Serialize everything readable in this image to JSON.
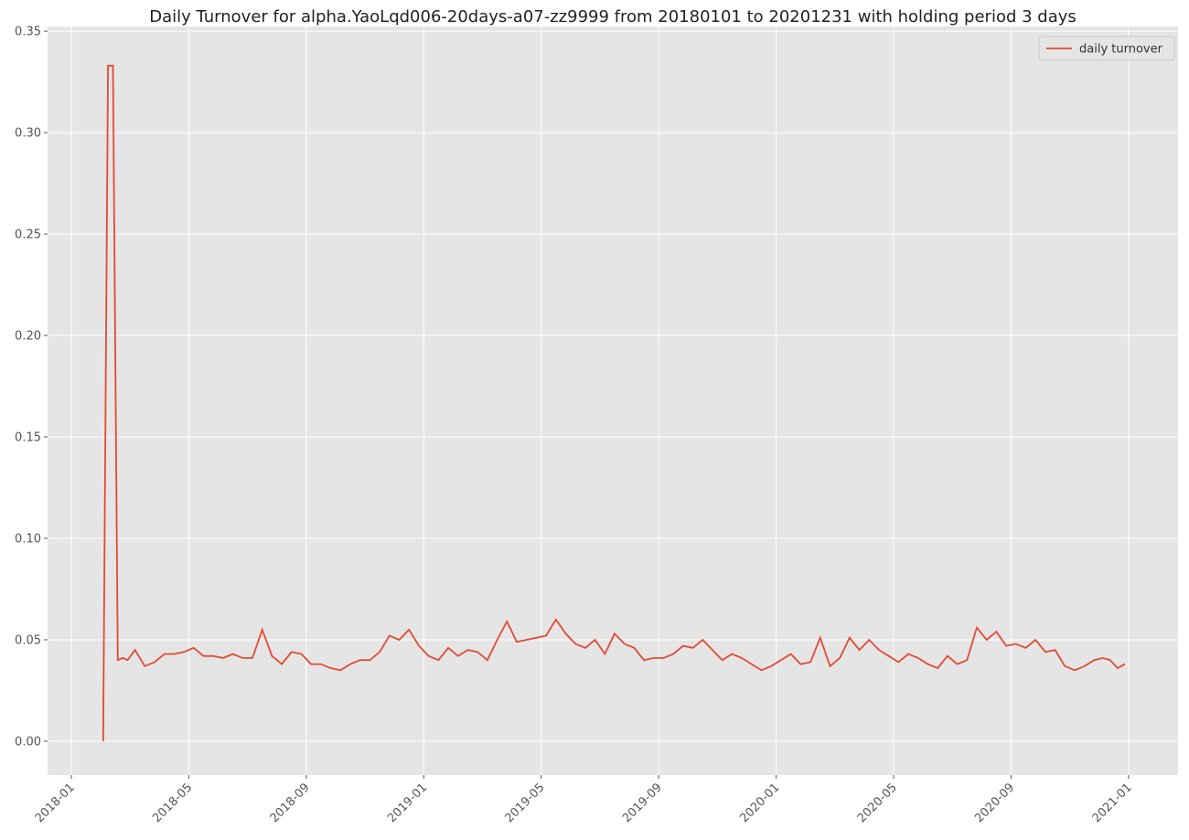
{
  "chart_data": {
    "type": "line",
    "title": "Daily Turnover for alpha.YaoLqd006-20days-a07-zz9999 from 20180101 to 20201231 with holding period 3 days",
    "x": [
      "2018-02",
      "2018-02",
      "2018-02",
      "2018-02",
      "2018-02",
      "2018-02",
      "2018-03",
      "2018-03",
      "2018-03",
      "2018-04",
      "2018-04",
      "2018-04",
      "2018-05",
      "2018-05",
      "2018-05",
      "2018-06",
      "2018-06",
      "2018-06",
      "2018-07",
      "2018-07",
      "2018-07",
      "2018-08",
      "2018-08",
      "2018-08",
      "2018-09",
      "2018-09",
      "2018-09",
      "2018-10",
      "2018-10",
      "2018-10",
      "2018-11",
      "2018-11",
      "2018-11",
      "2018-12",
      "2018-12",
      "2018-12",
      "2019-01",
      "2019-01",
      "2019-01",
      "2019-02",
      "2019-02",
      "2019-02",
      "2019-03",
      "2019-03",
      "2019-03",
      "2019-04",
      "2019-04",
      "2019-04",
      "2019-05",
      "2019-05",
      "2019-05",
      "2019-06",
      "2019-06",
      "2019-06",
      "2019-07",
      "2019-07",
      "2019-07",
      "2019-08",
      "2019-08",
      "2019-08",
      "2019-09",
      "2019-09",
      "2019-09",
      "2019-10",
      "2019-10",
      "2019-10",
      "2019-11",
      "2019-11",
      "2019-11",
      "2019-12",
      "2019-12",
      "2019-12",
      "2020-01",
      "2020-01",
      "2020-01",
      "2020-02",
      "2020-02",
      "2020-02",
      "2020-03",
      "2020-03",
      "2020-03",
      "2020-04",
      "2020-04",
      "2020-04",
      "2020-05",
      "2020-05",
      "2020-05",
      "2020-06",
      "2020-06",
      "2020-06",
      "2020-07",
      "2020-07",
      "2020-07",
      "2020-08",
      "2020-08",
      "2020-08",
      "2020-09",
      "2020-09",
      "2020-09",
      "2020-10",
      "2020-10",
      "2020-10",
      "2020-11",
      "2020-11",
      "2020-11",
      "2020-12",
      "2020-12",
      "2020-12",
      "2020-12"
    ],
    "series": [
      {
        "name": "daily turnover",
        "color": "#E24A33",
        "values": [
          0,
          0.333,
          0.333,
          0.04,
          0.041,
          0.04,
          0.045,
          0.037,
          0.039,
          0.043,
          0.043,
          0.044,
          0.046,
          0.042,
          0.042,
          0.041,
          0.043,
          0.041,
          0.041,
          0.055,
          0.042,
          0.038,
          0.044,
          0.043,
          0.038,
          0.038,
          0.036,
          0.035,
          0.038,
          0.04,
          0.04,
          0.044,
          0.052,
          0.05,
          0.055,
          0.047,
          0.042,
          0.04,
          0.046,
          0.042,
          0.045,
          0.044,
          0.04,
          0.05,
          0.059,
          0.049,
          0.05,
          0.051,
          0.052,
          0.06,
          0.053,
          0.048,
          0.046,
          0.05,
          0.043,
          0.053,
          0.048,
          0.046,
          0.04,
          0.041,
          0.041,
          0.043,
          0.047,
          0.046,
          0.05,
          0.045,
          0.04,
          0.043,
          0.041,
          0.038,
          0.035,
          0.037,
          0.04,
          0.043,
          0.038,
          0.039,
          0.051,
          0.037,
          0.041,
          0.051,
          0.045,
          0.05,
          0.045,
          0.042,
          0.039,
          0.043,
          0.041,
          0.038,
          0.036,
          0.042,
          0.038,
          0.04,
          0.056,
          0.05,
          0.054,
          0.047,
          0.048,
          0.046,
          0.05,
          0.044,
          0.045,
          0.037,
          0.035,
          0.037,
          0.04,
          0.041,
          0.04,
          0.036,
          0.038
        ]
      }
    ],
    "xlim": [
      "2017-12",
      "2021-02"
    ],
    "xticks": [
      "2018-01",
      "2018-05",
      "2018-09",
      "2019-01",
      "2019-05",
      "2019-09",
      "2020-01",
      "2020-05",
      "2020-09",
      "2021-01"
    ],
    "ylim": [
      -0.0167,
      0.3523
    ],
    "yticks": [
      {
        "value": 0,
        "label": "0.00"
      },
      {
        "value": 0.05,
        "label": "0.05"
      },
      {
        "value": 0.1,
        "label": "0.10"
      },
      {
        "value": 0.15,
        "label": "0.15"
      },
      {
        "value": 0.2,
        "label": "0.20"
      },
      {
        "value": 0.25,
        "label": "0.25"
      },
      {
        "value": 0.3,
        "label": "0.30"
      },
      {
        "value": 0.35,
        "label": "0.35"
      }
    ],
    "grid": true,
    "legend": "upper right"
  }
}
